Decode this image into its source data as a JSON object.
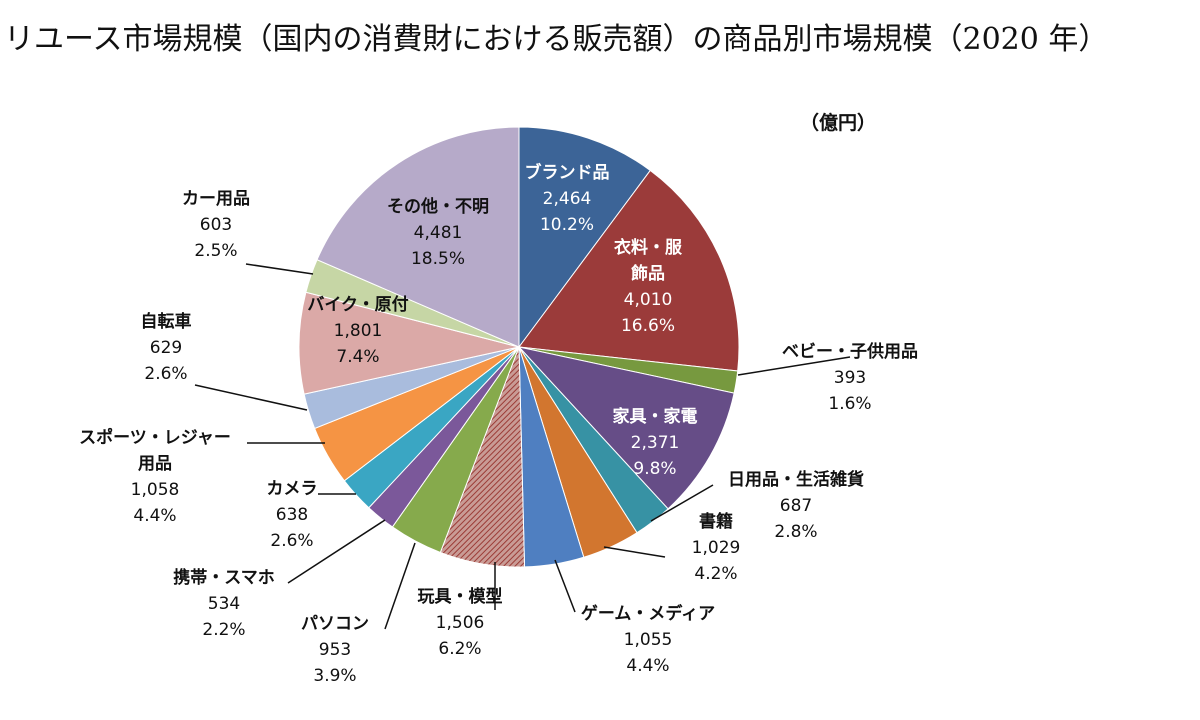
{
  "chart_data": {
    "type": "pie",
    "title": "リユース市場規模（国内の消費財における販売額）の商品別市場規模（2020 年）",
    "unit": "（億円）",
    "start": "top",
    "direction": "clockwise",
    "slices": [
      {
        "label": "ブランド品",
        "label_lines": [
          "ブランド品"
        ],
        "value": "2,464",
        "percent": "10.2%",
        "color": "#3c6497",
        "text_color": "#ffffff",
        "inside": true
      },
      {
        "label": "衣料・服飾品",
        "label_lines": [
          "衣料・服",
          "飾品"
        ],
        "value": "4,010",
        "percent": "16.6%",
        "color": "#9b3b3a",
        "text_color": "#ffffff",
        "inside": true
      },
      {
        "label": "ベビー・子供用品",
        "label_lines": [
          "ベビー・子供用品"
        ],
        "value": "393",
        "percent": "1.6%",
        "color": "#77993f",
        "text_color": "#111111",
        "inside": false
      },
      {
        "label": "家具・家電",
        "label_lines": [
          "家具・家電"
        ],
        "value": "2,371",
        "percent": "9.8%",
        "color": "#664d87",
        "text_color": "#ffffff",
        "inside": true
      },
      {
        "label": "日用品・生活雑貨",
        "label_lines": [
          "日用品・生活雑貨"
        ],
        "value": "687",
        "percent": "2.8%",
        "color": "#3792a4",
        "text_color": "#111111",
        "inside": false
      },
      {
        "label": "書籍",
        "label_lines": [
          "書籍"
        ],
        "value": "1,029",
        "percent": "4.2%",
        "color": "#d2762f",
        "text_color": "#111111",
        "inside": false
      },
      {
        "label": "ゲーム・メディア",
        "label_lines": [
          "ゲーム・メディア"
        ],
        "value": "1,055",
        "percent": "4.4%",
        "color": "#4f7fc1",
        "text_color": "#111111",
        "inside": false
      },
      {
        "label": "玩具・模型",
        "label_lines": [
          "玩具・模型"
        ],
        "value": "1,506",
        "percent": "6.2%",
        "color": "#b95a52",
        "text_color": "#111111",
        "inside": false,
        "hatched": true
      },
      {
        "label": "パソコン",
        "label_lines": [
          "パソコン"
        ],
        "value": "953",
        "percent": "3.9%",
        "color": "#86aa4c",
        "text_color": "#111111",
        "inside": false
      },
      {
        "label": "携帯・スマホ",
        "label_lines": [
          "携帯・スマホ"
        ],
        "value": "534",
        "percent": "2.2%",
        "color": "#7b589a",
        "text_color": "#111111",
        "inside": false
      },
      {
        "label": "カメラ",
        "label_lines": [
          "カメラ"
        ],
        "value": "638",
        "percent": "2.6%",
        "color": "#3aa6c3",
        "text_color": "#111111",
        "inside": false
      },
      {
        "label": "スポーツ・レジャー用品",
        "label_lines": [
          "スポーツ・レジャー",
          "用品"
        ],
        "value": "1,058",
        "percent": "4.4%",
        "color": "#f59444",
        "text_color": "#111111",
        "inside": false
      },
      {
        "label": "自転車",
        "label_lines": [
          "自転車"
        ],
        "value": "629",
        "percent": "2.6%",
        "color": "#a9bcdd",
        "text_color": "#111111",
        "inside": false
      },
      {
        "label": "バイク・原付",
        "label_lines": [
          "バイク・原付"
        ],
        "value": "1,801",
        "percent": "7.4%",
        "color": "#dba9a7",
        "text_color": "#111111",
        "inside": true
      },
      {
        "label": "カー用品",
        "label_lines": [
          "カー用品"
        ],
        "value": "603",
        "percent": "2.5%",
        "color": "#c6d6a5",
        "text_color": "#111111",
        "inside": false
      },
      {
        "label": "その他・不明",
        "label_lines": [
          "その他・不明"
        ],
        "value": "4,481",
        "percent": "18.5%",
        "color": "#b6aac9",
        "text_color": "#111111",
        "inside": true
      }
    ]
  }
}
